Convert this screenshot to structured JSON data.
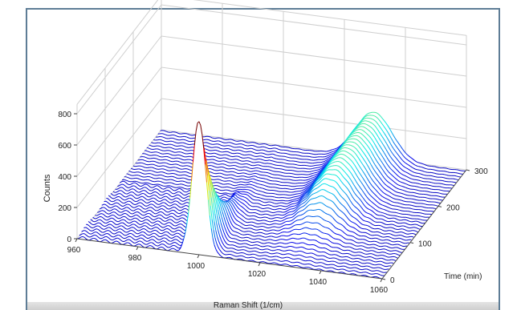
{
  "chart_data": {
    "type": "surface",
    "title": "",
    "xlabel": "Raman Shift (1/cm)",
    "ylabel": "Time (min)",
    "zlabel": "Counts",
    "xlim": [
      960,
      1060
    ],
    "ylim": [
      0,
      300
    ],
    "zlim": [
      0,
      800
    ],
    "x_ticks": [
      "960",
      "980",
      "1000",
      "1020",
      "1040",
      "1060"
    ],
    "y_ticks": [
      "0",
      "100",
      "200",
      "300"
    ],
    "z_ticks": [
      "0",
      "200",
      "400",
      "600",
      "800"
    ],
    "grid": true,
    "colormap": "jet",
    "peaks": [
      {
        "center_shift": 1000,
        "max_counts": 850,
        "at_time": 0,
        "decays_by_time": 120
      },
      {
        "center_shift": 1030,
        "max_counts": 300,
        "rises_from_time": 60,
        "plateau_time": 250
      }
    ]
  }
}
